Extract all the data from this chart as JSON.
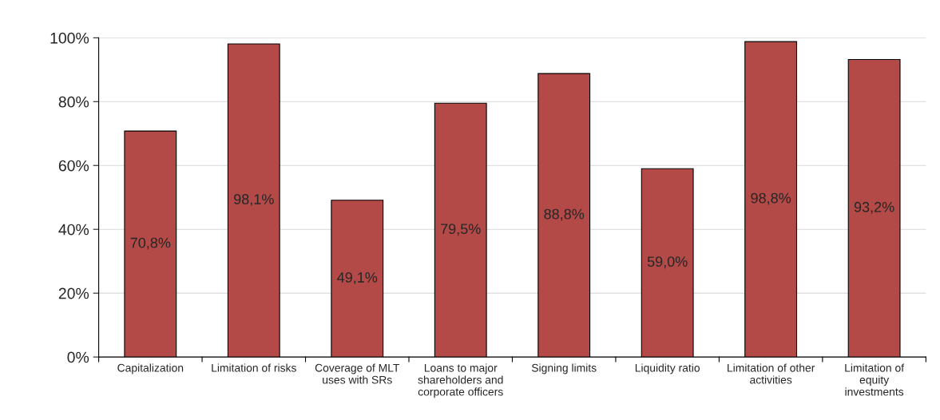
{
  "chart_data": {
    "type": "bar",
    "categories": [
      "Capitalization",
      "Limitation of risks",
      "Coverage of MLT\nuses with SRs",
      "Loans to major\nshareholders and\ncorporate officers",
      "Signing limits",
      "Liquidity ratio",
      "Limitation of other\nactivities",
      "Limitation of\nequity\ninvestments"
    ],
    "values": [
      70.8,
      98.1,
      49.1,
      79.5,
      88.8,
      59.0,
      98.8,
      93.2
    ],
    "value_labels": [
      "70,8%",
      "98,1%",
      "49,1%",
      "79,5%",
      "88,8%",
      "59,0%",
      "98,8%",
      "93,2%"
    ],
    "color": "#b34a47",
    "ylim": [
      0,
      100
    ],
    "yticks": [
      {
        "value": 0,
        "label": "0%"
      },
      {
        "value": 20,
        "label": "20%"
      },
      {
        "value": 40,
        "label": "40%"
      },
      {
        "value": 60,
        "label": "60%"
      },
      {
        "value": 80,
        "label": "80%"
      },
      {
        "value": 100,
        "label": "100%"
      }
    ],
    "grid": "y",
    "legend": false
  }
}
